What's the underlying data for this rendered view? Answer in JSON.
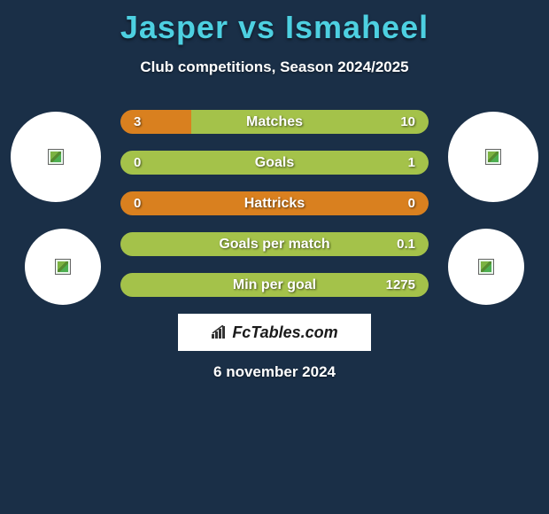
{
  "title": "Jasper vs Ismaheel",
  "subtitle": "Club competitions, Season 2024/2025",
  "date": "6 november 2024",
  "logo_text": "FcTables.com",
  "colors": {
    "background": "#1a2f47",
    "title": "#4dd0e1",
    "left_bar": "#d9801f",
    "right_bar": "#a4c24a",
    "full_right_bar": "#a4c24a",
    "text": "#ffffff",
    "avatar_bg": "#ffffff"
  },
  "bars": [
    {
      "label": "Matches",
      "left": "3",
      "right": "10",
      "left_pct": 23,
      "right_pct": 77
    },
    {
      "label": "Goals",
      "left": "0",
      "right": "1",
      "left_pct": 0,
      "right_pct": 100
    },
    {
      "label": "Hattricks",
      "left": "0",
      "right": "0",
      "full_color": "#d9801f"
    },
    {
      "label": "Goals per match",
      "left": "",
      "right": "0.1",
      "left_pct": 0,
      "right_pct": 100
    },
    {
      "label": "Min per goal",
      "left": "",
      "right": "1275",
      "left_pct": 0,
      "right_pct": 100
    }
  ]
}
